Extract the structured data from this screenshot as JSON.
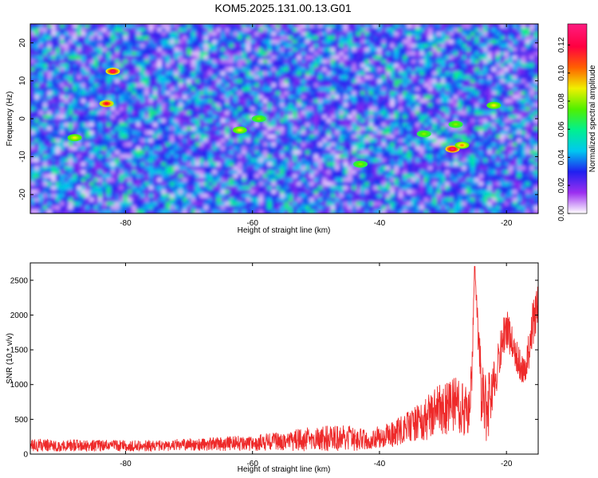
{
  "title": "KOM5.2025.131.00.13.G01",
  "chart_data": [
    {
      "type": "heatmap",
      "xlabel": "Height of straight line (km)",
      "ylabel": "Frequency (Hz)",
      "xlim": [
        -95,
        -15
      ],
      "ylim": [
        -25,
        25
      ],
      "xticks": [
        -80,
        -60,
        -40,
        -20
      ],
      "xtick_labels": [
        "-80",
        "-60",
        "-40",
        "-20"
      ],
      "yticks": [
        -20,
        -10,
        0,
        10,
        20
      ],
      "ytick_labels": [
        "-20",
        "-10",
        "0",
        "10",
        "20"
      ],
      "colorbar": {
        "label": "Normalized spectral amplitude",
        "range": [
          0.0,
          0.135
        ],
        "ticks": [
          0.0,
          0.02,
          0.04,
          0.06,
          0.08,
          0.1,
          0.12
        ],
        "tick_labels": [
          "0.00",
          "0.02",
          "0.04",
          "0.06",
          "0.08",
          "0.10",
          "0.12"
        ],
        "colors": [
          "#ffffff",
          "#9b2ff0",
          "#2020f0",
          "#00c8f0",
          "#00f090",
          "#50f000",
          "#f0f000",
          "#ff6000",
          "#ff0040",
          "#ff1c80"
        ]
      },
      "peaks": [
        {
          "x": -82,
          "y": 12.5,
          "value": 0.13
        },
        {
          "x": -83,
          "y": 4,
          "value": 0.12
        },
        {
          "x": -28.5,
          "y": -8,
          "value": 0.135
        },
        {
          "x": -88,
          "y": -5,
          "value": 0.09
        },
        {
          "x": -62,
          "y": -3,
          "value": 0.09
        },
        {
          "x": -59,
          "y": 0,
          "value": 0.08
        },
        {
          "x": -43,
          "y": -12,
          "value": 0.08
        },
        {
          "x": -28,
          "y": -1.5,
          "value": 0.08
        },
        {
          "x": -33,
          "y": -4,
          "value": 0.08
        },
        {
          "x": -27,
          "y": -7,
          "value": 0.1
        },
        {
          "x": -22,
          "y": 3.5,
          "value": 0.09
        }
      ]
    },
    {
      "type": "line",
      "xlabel": "Height of straight line (km)",
      "ylabel": "SNR (10 * v/v)",
      "xlim": [
        -95,
        -15
      ],
      "ylim": [
        0,
        2750
      ],
      "xticks": [
        -80,
        -60,
        -40,
        -20
      ],
      "xtick_labels": [
        "-80",
        "-60",
        "-40",
        "-20"
      ],
      "yticks": [
        0,
        500,
        1000,
        1500,
        2000,
        2500
      ],
      "ytick_labels": [
        "0",
        "500",
        "1000",
        "1500",
        "2000",
        "2500"
      ],
      "line_color": "#ee2a2a",
      "envelope": {
        "x": [
          -95,
          -85,
          -75,
          -70,
          -60,
          -55,
          -50,
          -45,
          -42,
          -40,
          -38,
          -36,
          -34,
          -32,
          -30,
          -28,
          -26,
          -25.5,
          -25,
          -24,
          -23,
          -22,
          -21,
          -20,
          -19,
          -18,
          -17,
          -16,
          -15
        ],
        "base": [
          130,
          120,
          120,
          140,
          160,
          190,
          220,
          230,
          210,
          250,
          280,
          380,
          450,
          550,
          650,
          700,
          600,
          1100,
          2700,
          950,
          600,
          1050,
          1500,
          1800,
          1600,
          1300,
          1150,
          1800,
          2050
        ],
        "noise": [
          90,
          80,
          80,
          90,
          110,
          140,
          180,
          200,
          140,
          160,
          180,
          220,
          260,
          340,
          400,
          420,
          380,
          500,
          0,
          500,
          500,
          400,
          300,
          280,
          250,
          220,
          200,
          350,
          400
        ]
      }
    }
  ]
}
